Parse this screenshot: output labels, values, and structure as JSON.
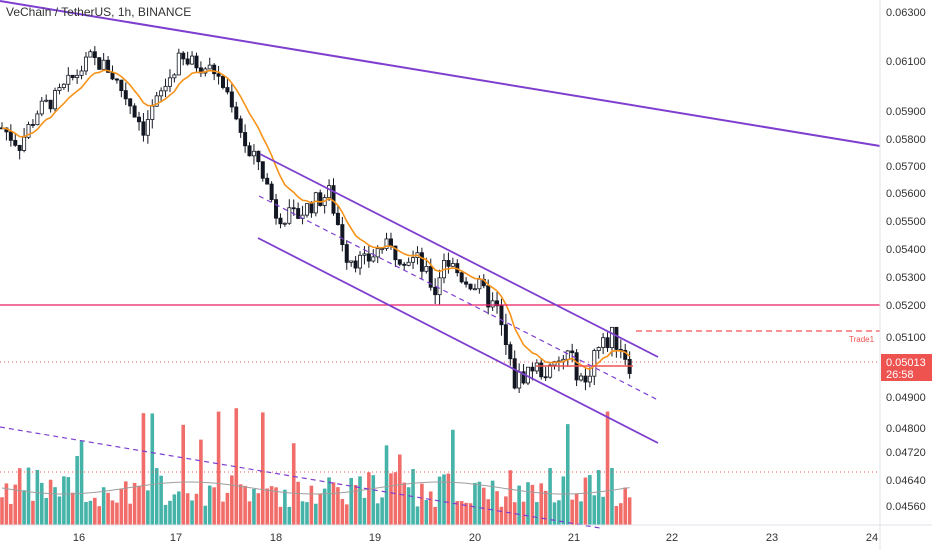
{
  "header": {
    "title": "VeChain / TetherUS, 1h, BINANCE"
  },
  "colors": {
    "up": "#26a69a",
    "down": "#ef5350",
    "channel": "#7e3fcf",
    "trendline": "#7e3fcf",
    "resistance": "#e91e63",
    "trade": "#ef5350",
    "ema": "#f7931a",
    "vol_ma": "#9e9e9e",
    "badge": "#ef5350",
    "axis_text": "#333333"
  },
  "price_axis": {
    "labels": [
      "0.06300",
      "0.06100",
      "0.05900",
      "0.05800",
      "0.05700",
      "0.05600",
      "0.05500",
      "0.05400",
      "0.05300",
      "0.05200",
      "0.05100",
      "0.04900",
      "0.04800",
      "0.04720",
      "0.04640",
      "0.04560"
    ]
  },
  "last_price": {
    "value": "0.05013",
    "countdown": "26:58"
  },
  "trade_label": "Trade1",
  "chart_data": {
    "type": "candlestick",
    "title": "VeChain / TetherUS, 1h, BINANCE",
    "x_ticks": [
      "16",
      "17",
      "18",
      "19",
      "20",
      "21",
      "22",
      "23",
      "24"
    ],
    "y_ticks": [
      "0.06300",
      "0.06100",
      "0.05900",
      "0.05800",
      "0.05700",
      "0.05600",
      "0.05500",
      "0.05400",
      "0.05300",
      "0.05200",
      "0.05100",
      "0.04900",
      "0.04800",
      "0.04720",
      "0.04640",
      "0.04560"
    ],
    "ylim": [
      0.0455,
      0.0632
    ],
    "price_path": [
      [
        0,
        0.0584
      ],
      [
        4,
        0.0578
      ],
      [
        8,
        0.059
      ],
      [
        12,
        0.0595
      ],
      [
        16,
        0.0603
      ],
      [
        20,
        0.0611
      ],
      [
        24,
        0.0607
      ],
      [
        28,
        0.0596
      ],
      [
        32,
        0.0584
      ],
      [
        36,
        0.0597
      ],
      [
        40,
        0.061
      ],
      [
        44,
        0.0609
      ],
      [
        48,
        0.0606
      ],
      [
        52,
        0.0594
      ],
      [
        56,
        0.0573
      ],
      [
        58,
        0.0572
      ],
      [
        62,
        0.0553
      ],
      [
        66,
        0.0551
      ],
      [
        70,
        0.0556
      ],
      [
        74,
        0.056
      ],
      [
        78,
        0.0538
      ],
      [
        82,
        0.0535
      ],
      [
        86,
        0.0541
      ],
      [
        90,
        0.0538
      ],
      [
        94,
        0.0536
      ],
      [
        98,
        0.0525
      ],
      [
        100,
        0.0537
      ],
      [
        104,
        0.053
      ],
      [
        108,
        0.0526
      ],
      [
        112,
        0.0518
      ],
      [
        116,
        0.0495
      ],
      [
        120,
        0.05
      ],
      [
        124,
        0.0498
      ],
      [
        128,
        0.0504
      ],
      [
        132,
        0.0494
      ],
      [
        134,
        0.0505
      ],
      [
        138,
        0.051
      ],
      [
        140,
        0.0507
      ],
      [
        142,
        0.0501
      ]
    ],
    "levels": {
      "resistance": 0.052,
      "trade1": 0.0511,
      "last": 0.05013,
      "support_box": 0.0499
    },
    "volume": {
      "ma_level": "high-activity line"
    }
  }
}
